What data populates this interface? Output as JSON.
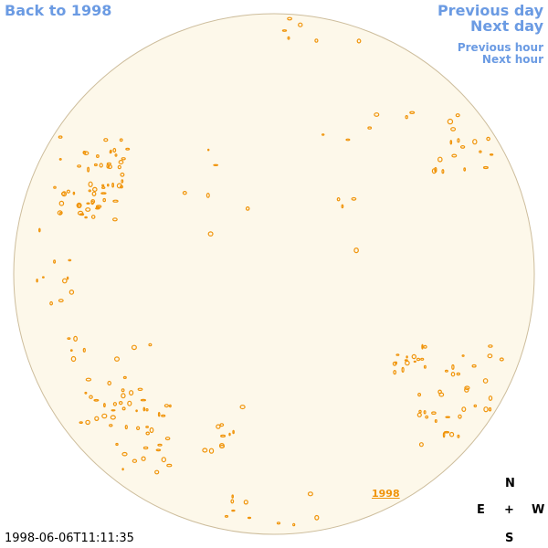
{
  "nav": {
    "back": "Back to 1998",
    "previous_day": "Previous day",
    "next_day": "Next day",
    "previous_hour": "Previous hour",
    "next_hour": "Next hour"
  },
  "timestamp": "1998-06-06T11:11:35",
  "disk_label": "1998",
  "compass": {
    "north": "N",
    "east": "E",
    "center": "+",
    "west": "W",
    "south": "S"
  }
}
